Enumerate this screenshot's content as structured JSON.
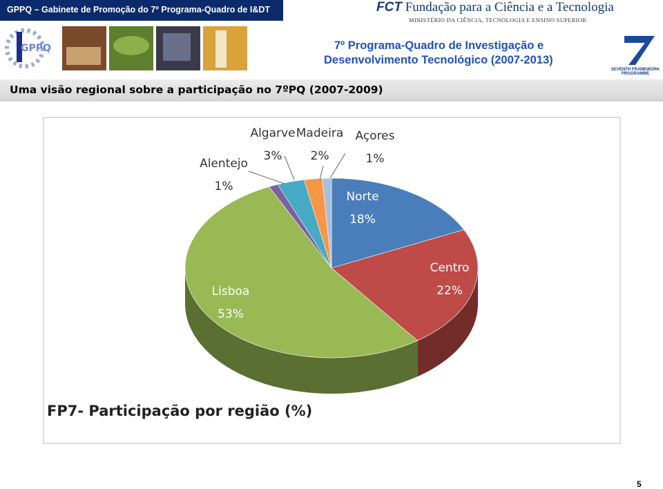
{
  "header": {
    "organization": "GPPQ – Gabinete de Promoção do 7º Programa-Quadro de I&DT",
    "fct_name": "Fundação para a Ciência e a Tecnologia",
    "fct_abbr": "FCT",
    "ministry": "MINISTÉRIO DA CIÊNCIA, TECNOLOGIA E ENSINO SUPERIOR",
    "programme_line1": "7º Programa-Quadro de Investigação e",
    "programme_line2": "Desenvolvimento Tecnológico (2007-2013)",
    "fp7_logo_text": "SEVENTH FRAMEWORK PROGRAMME",
    "logo_text": "GPPQ"
  },
  "subtitle": "Uma visão regional sobre a participação no 7ºPQ (2007-2009)",
  "chart_data": {
    "type": "pie",
    "title": "FP7- Participação por região (%)",
    "categories": [
      "Norte",
      "Centro",
      "Lisboa",
      "Alentejo",
      "Algarve",
      "Madeira",
      "Açores"
    ],
    "values": [
      18,
      22,
      53,
      1,
      3,
      2,
      1
    ],
    "value_labels": [
      "18%",
      "22%",
      "53%",
      "1%",
      "3%",
      "2%",
      "1%"
    ],
    "colors": [
      "#4a7ebb",
      "#be4b48",
      "#98b954",
      "#7d60a0",
      "#46aac5",
      "#f79646",
      "#a7c0de"
    ]
  },
  "page_number": "5"
}
